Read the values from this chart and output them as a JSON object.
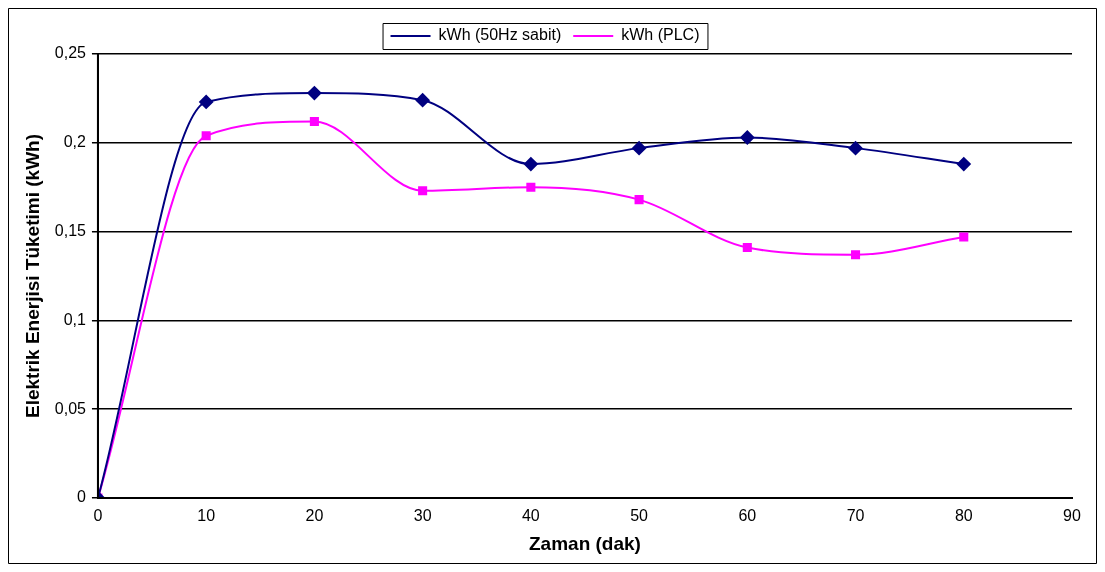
{
  "chart_data": {
    "type": "line",
    "xlabel": "Zaman (dak)",
    "ylabel": "Elektrik Enerjisi Tüketimi (kWh)",
    "x": [
      0,
      10,
      20,
      30,
      40,
      50,
      60,
      70,
      80
    ],
    "series": [
      {
        "name": "kWh (50Hz sabit)",
        "color": "#000080",
        "marker": "diamond",
        "values": [
          0,
          0.223,
          0.228,
          0.224,
          0.188,
          0.197,
          0.203,
          0.197,
          0.188
        ]
      },
      {
        "name": "kWh (PLC)",
        "color": "#ff00ff",
        "marker": "square",
        "values": [
          0,
          0.204,
          0.212,
          0.173,
          0.175,
          0.168,
          0.141,
          0.137,
          0.147
        ]
      }
    ],
    "xlim": [
      0,
      90
    ],
    "xticks": [
      0,
      10,
      20,
      30,
      40,
      50,
      60,
      70,
      80,
      90
    ],
    "ylim": [
      0,
      0.25
    ],
    "yticks": [
      0,
      {
        "value": 0.05,
        "label": "0,05"
      },
      {
        "value": 0.1,
        "label": "0,1"
      },
      {
        "value": 0.15,
        "label": "0,15"
      },
      {
        "value": 0.2,
        "label": "0,2"
      },
      {
        "value": 0.25,
        "label": "0,25"
      }
    ],
    "grid": "y",
    "legend": "top",
    "line_style": "solid"
  }
}
